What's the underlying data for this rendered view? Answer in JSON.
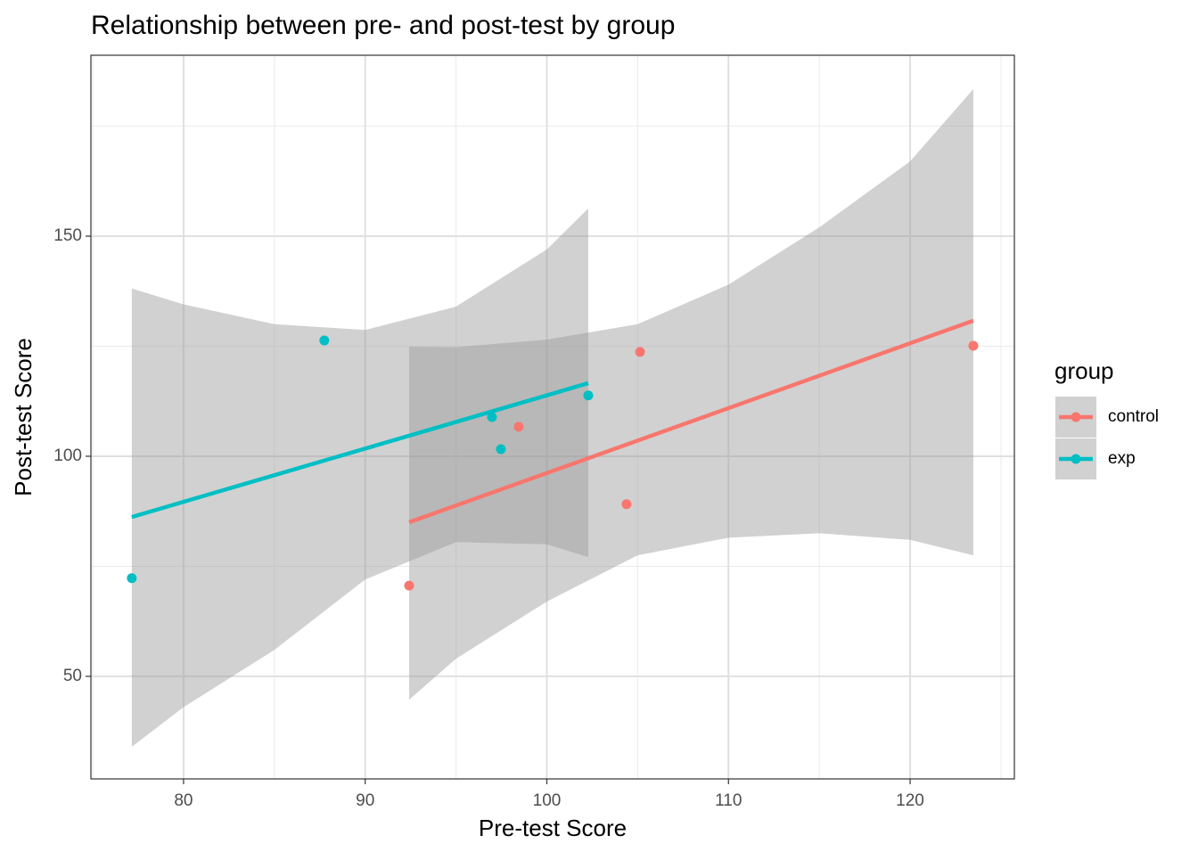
{
  "chart_data": {
    "type": "scatter",
    "title": "Relationship between pre- and post-test by group",
    "x_label": "Pre-test Score",
    "y_label": "Post-test Score",
    "legend_title": "group",
    "legend_position": "right",
    "xlim": [
      74.9,
      125.74
    ],
    "ylim": [
      26.7,
      191.1
    ],
    "xticks": [
      80,
      90,
      100,
      110,
      120
    ],
    "yticks": [
      50,
      100,
      150
    ],
    "x_minor_ticks": [
      75,
      85,
      95,
      105,
      115,
      125
    ],
    "y_minor_ticks": [
      75,
      125,
      175
    ],
    "grid": true,
    "band_color": "#999999",
    "series": [
      {
        "name": "control",
        "color": "#F8766D",
        "x": [
          92.42,
          98.45,
          104.39,
          105.13,
          123.48
        ],
        "values": [
          70.6,
          106.7,
          89.1,
          123.7,
          125.1
        ],
        "fit_x": [
          92.42,
          123.48
        ],
        "fit_y": [
          85.0,
          130.8
        ],
        "band_x": [
          92.42,
          95,
          100,
          105,
          110,
          115,
          120,
          123.48
        ],
        "band_lower": [
          44.7,
          54,
          67,
          77.5,
          81.5,
          82.5,
          81,
          77.5
        ],
        "band_upper": [
          124.9,
          124.8,
          126.5,
          130,
          139,
          152,
          167,
          183.4
        ]
      },
      {
        "name": "exp",
        "color": "#00BFC4",
        "x": [
          77.15,
          87.75,
          96.98,
          97.47,
          102.28
        ],
        "values": [
          72.3,
          126.3,
          108.9,
          101.6,
          113.8
        ],
        "fit_x": [
          77.15,
          102.28
        ],
        "fit_y": [
          86.2,
          116.6
        ],
        "band_x": [
          77.15,
          80,
          85,
          90,
          95,
          100,
          102.28
        ],
        "band_lower": [
          34.0,
          43,
          56,
          72,
          80.5,
          80,
          77.1
        ],
        "band_upper": [
          138.1,
          134.5,
          130,
          128.7,
          134,
          147,
          156.3
        ]
      }
    ]
  }
}
